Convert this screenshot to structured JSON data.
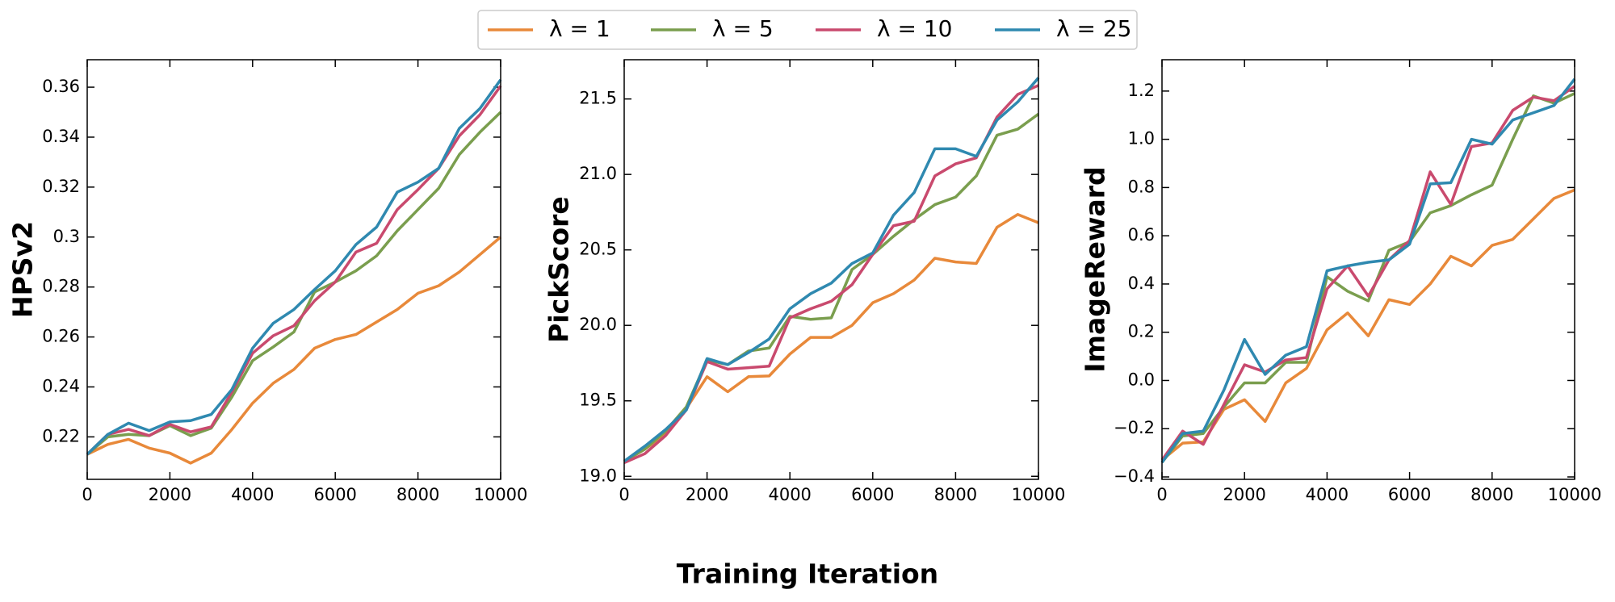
{
  "xlabel": "Training Iteration",
  "chart_data": [
    {
      "type": "line",
      "ylabel": "HPSv2",
      "x": [
        0,
        500,
        1000,
        1500,
        2000,
        2500,
        3000,
        3500,
        4000,
        4500,
        5000,
        5500,
        6000,
        6500,
        7000,
        7500,
        8000,
        8500,
        9000,
        9500,
        10000
      ],
      "xlim": [
        0,
        10000
      ],
      "xticks": [
        0,
        2000,
        4000,
        6000,
        8000,
        10000
      ],
      "ylim": [
        0.203,
        0.371
      ],
      "yticks": [
        0.22,
        0.24,
        0.26,
        0.28,
        0.3,
        0.32,
        0.34,
        0.36
      ],
      "series": [
        {
          "name": "λ = 1",
          "color": "#e8893a",
          "values": [
            0.213,
            0.217,
            0.219,
            0.2155,
            0.2135,
            0.2095,
            0.2135,
            0.223,
            0.2335,
            0.2415,
            0.247,
            0.2555,
            0.259,
            0.261,
            0.266,
            0.271,
            0.2775,
            0.2805,
            0.286,
            0.293,
            0.3
          ]
        },
        {
          "name": "λ = 5",
          "color": "#7a9e4e",
          "values": [
            0.213,
            0.22,
            0.221,
            0.2205,
            0.2245,
            0.2205,
            0.2235,
            0.236,
            0.2505,
            0.256,
            0.262,
            0.278,
            0.282,
            0.2865,
            0.2925,
            0.3025,
            0.311,
            0.3195,
            0.333,
            0.342,
            0.35
          ]
        },
        {
          "name": "λ = 10",
          "color": "#c94a6e",
          "values": [
            0.213,
            0.221,
            0.223,
            0.2205,
            0.225,
            0.222,
            0.224,
            0.238,
            0.2535,
            0.2605,
            0.2645,
            0.2745,
            0.282,
            0.294,
            0.2975,
            0.311,
            0.319,
            0.3275,
            0.3405,
            0.349,
            0.3605
          ]
        },
        {
          "name": "λ = 25",
          "color": "#2f89b0",
          "values": [
            0.213,
            0.221,
            0.2255,
            0.2225,
            0.226,
            0.2265,
            0.229,
            0.239,
            0.2555,
            0.2655,
            0.271,
            0.279,
            0.2865,
            0.297,
            0.304,
            0.318,
            0.322,
            0.3275,
            0.3435,
            0.3515,
            0.363
          ]
        }
      ]
    },
    {
      "type": "line",
      "ylabel": "PickScore",
      "x": [
        0,
        500,
        1000,
        1500,
        2000,
        2500,
        3000,
        3500,
        4000,
        4500,
        5000,
        5500,
        6000,
        6500,
        7000,
        7500,
        8000,
        8500,
        9000,
        9500,
        10000
      ],
      "xlim": [
        0,
        10000
      ],
      "xticks": [
        0,
        2000,
        4000,
        6000,
        8000,
        10000
      ],
      "ylim": [
        18.98,
        21.76
      ],
      "yticks": [
        {
          "value": 19,
          "label": "19.0"
        },
        19.5,
        {
          "value": 20,
          "label": "20.0"
        },
        20.5,
        {
          "value": 21,
          "label": "21.0"
        },
        21.5
      ],
      "series": [
        {
          "color": "#e8893a",
          "values": [
            19.1,
            19.18,
            19.28,
            19.45,
            19.66,
            19.56,
            19.66,
            19.665,
            19.81,
            19.92,
            19.92,
            20.0,
            20.15,
            20.21,
            20.3,
            20.445,
            20.42,
            20.41,
            20.65,
            20.735,
            20.68
          ]
        },
        {
          "color": "#7a9e4e",
          "values": [
            19.1,
            19.18,
            19.3,
            19.46,
            19.77,
            19.74,
            19.83,
            19.85,
            20.06,
            20.04,
            20.05,
            20.37,
            20.47,
            20.59,
            20.7,
            20.8,
            20.85,
            20.99,
            21.26,
            21.3,
            21.4
          ]
        },
        {
          "color": "#c94a6e",
          "values": [
            19.09,
            19.15,
            19.27,
            19.44,
            19.76,
            19.71,
            19.72,
            19.73,
            20.05,
            20.11,
            20.16,
            20.27,
            20.47,
            20.66,
            20.69,
            20.99,
            21.07,
            21.11,
            21.38,
            21.53,
            21.59
          ]
        },
        {
          "color": "#2f89b0",
          "values": [
            19.1,
            19.2,
            19.31,
            19.44,
            19.78,
            19.74,
            19.82,
            19.91,
            20.11,
            20.21,
            20.28,
            20.41,
            20.48,
            20.73,
            20.88,
            21.17,
            21.17,
            21.12,
            21.36,
            21.48,
            21.64
          ]
        }
      ]
    },
    {
      "type": "line",
      "ylabel": "ImageReward",
      "x": [
        0,
        500,
        1000,
        1500,
        2000,
        2500,
        3000,
        3500,
        4000,
        4500,
        5000,
        5500,
        6000,
        6500,
        7000,
        7500,
        8000,
        8500,
        9000,
        9500,
        10000
      ],
      "xlim": [
        0,
        10000
      ],
      "xticks": [
        0,
        2000,
        4000,
        6000,
        8000,
        10000
      ],
      "ylim": [
        -0.41,
        1.33
      ],
      "yticks": [
        {
          "value": -0.4,
          "label": "−0.4"
        },
        {
          "value": -0.2,
          "label": "−0.2"
        },
        {
          "value": 0,
          "label": "0.0"
        },
        0.2,
        0.4,
        0.6,
        0.8,
        {
          "value": 1,
          "label": "1.0"
        },
        1.2
      ],
      "series": [
        {
          "color": "#e8893a",
          "values": [
            -0.33,
            -0.26,
            -0.255,
            -0.12,
            -0.08,
            -0.17,
            -0.01,
            0.05,
            0.21,
            0.28,
            0.185,
            0.335,
            0.315,
            0.4,
            0.515,
            0.475,
            0.56,
            0.585,
            0.67,
            0.755,
            0.79
          ]
        },
        {
          "color": "#7a9e4e",
          "values": [
            -0.34,
            -0.23,
            -0.22,
            -0.11,
            -0.01,
            -0.01,
            0.075,
            0.075,
            0.43,
            0.37,
            0.33,
            0.54,
            0.575,
            0.695,
            0.725,
            0.77,
            0.81,
            1.0,
            1.18,
            1.15,
            1.19
          ]
        },
        {
          "color": "#c94a6e",
          "values": [
            -0.33,
            -0.21,
            -0.265,
            -0.1,
            0.065,
            0.035,
            0.085,
            0.095,
            0.38,
            0.475,
            0.35,
            0.5,
            0.58,
            0.865,
            0.73,
            0.97,
            0.985,
            1.12,
            1.175,
            1.16,
            1.22
          ]
        },
        {
          "color": "#2f89b0",
          "values": [
            -0.34,
            -0.22,
            -0.21,
            -0.04,
            0.17,
            0.025,
            0.105,
            0.14,
            0.455,
            0.475,
            0.49,
            0.5,
            0.565,
            0.815,
            0.82,
            1.0,
            0.98,
            1.08,
            1.11,
            1.14,
            1.25
          ]
        }
      ]
    }
  ]
}
